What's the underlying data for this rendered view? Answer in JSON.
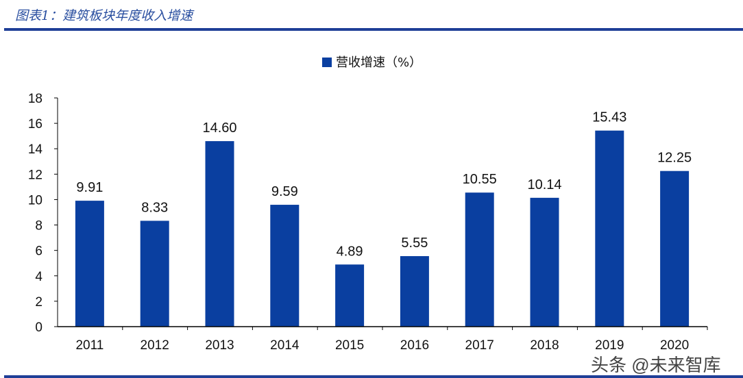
{
  "header": {
    "title": "图表1：建筑板块年度收入增速"
  },
  "watermark": "头条 @未来智库",
  "chart_data": {
    "type": "bar",
    "categories": [
      "2011",
      "2012",
      "2013",
      "2014",
      "2015",
      "2016",
      "2017",
      "2018",
      "2019",
      "2020"
    ],
    "series": [
      {
        "name": "营收增速（%）",
        "values": [
          9.91,
          8.33,
          14.6,
          9.59,
          4.89,
          5.55,
          10.55,
          10.14,
          15.43,
          12.25
        ],
        "color": "#0a3fa0"
      }
    ],
    "data_labels": [
      "9.91",
      "8.33",
      "14.60",
      "9.59",
      "4.89",
      "5.55",
      "10.55",
      "10.14",
      "15.43",
      "12.25"
    ],
    "ylim": [
      0,
      18
    ],
    "yticks": [
      0,
      2,
      4,
      6,
      8,
      10,
      12,
      14,
      16,
      18
    ],
    "grid": false,
    "legend": "top-center"
  }
}
